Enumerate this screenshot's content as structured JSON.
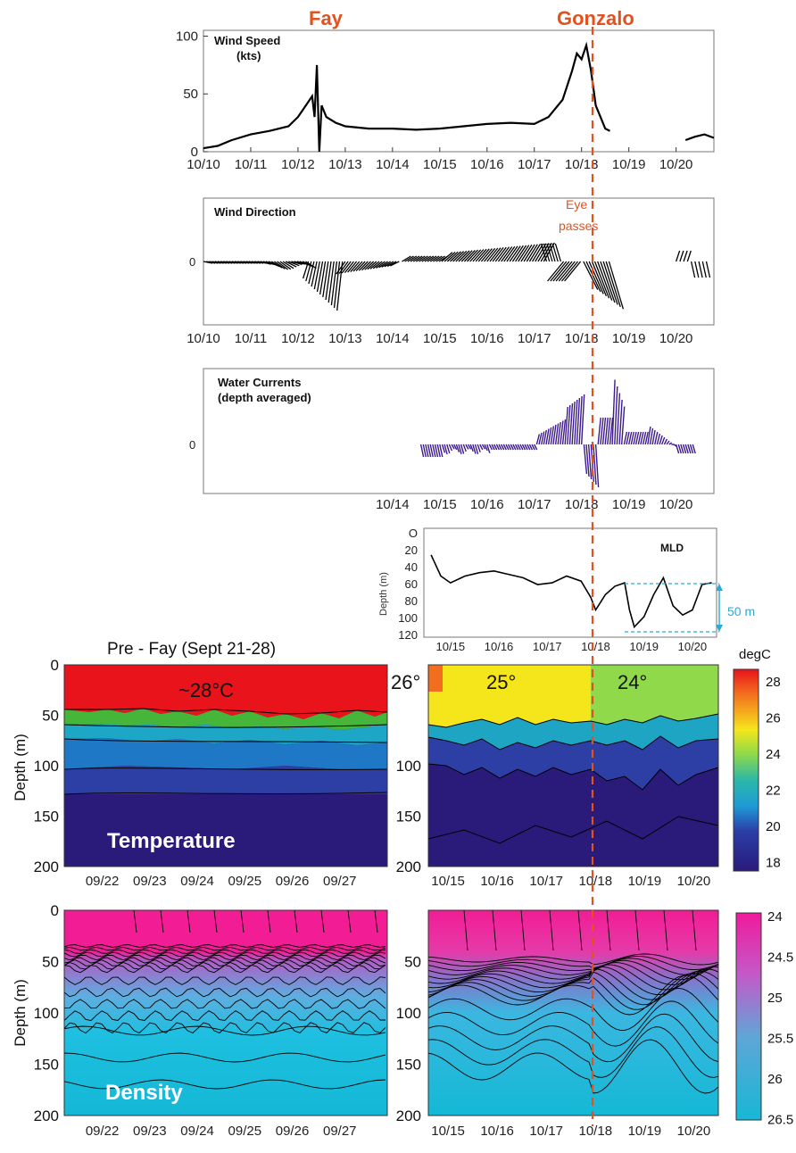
{
  "storm_labels": {
    "fay": "Fay",
    "gonzalo": "Gonzalo",
    "eye_line1": "Eye",
    "eye_line2": "passes"
  },
  "colors": {
    "storm": "#e2521f",
    "wind": "#000000",
    "currents": "#3d1a8c",
    "mld_bracket": "#2aa9d6"
  },
  "chart_data": [
    {
      "type": "line",
      "title": "Wind Speed",
      "subtitle": "(kts)",
      "x_ticks": [
        "10/10",
        "10/11",
        "10/12",
        "10/13",
        "10/14",
        "10/15",
        "10/16",
        "10/17",
        "10/18",
        "10/19",
        "10/20"
      ],
      "y_ticks": [
        "0",
        "50",
        "100"
      ],
      "ylim": [
        0,
        105
      ],
      "series": [
        {
          "x": [
            0,
            0.3,
            0.6,
            1.0,
            1.4,
            1.8,
            2.0,
            2.2,
            2.3,
            2.35,
            2.4,
            2.45,
            2.5,
            2.6,
            2.8,
            3.0,
            3.5,
            4.0,
            4.5,
            5.0,
            5.5,
            6.0,
            6.5,
            7.0,
            7.3,
            7.6,
            7.8,
            7.9,
            8.0,
            8.1,
            8.2,
            8.3,
            8.4,
            8.5,
            8.6,
            10.2,
            10.4,
            10.6,
            10.8
          ],
          "y": [
            3,
            5,
            10,
            15,
            18,
            22,
            30,
            42,
            48,
            30,
            75,
            0,
            40,
            30,
            25,
            22,
            20,
            20,
            19,
            20,
            22,
            24,
            25,
            24,
            30,
            45,
            70,
            85,
            80,
            92,
            70,
            40,
            30,
            20,
            18,
            10,
            13,
            15,
            12
          ]
        }
      ]
    },
    {
      "type": "quiver",
      "title": "Wind Direction",
      "x_ticks": [
        "10/10",
        "10/11",
        "10/12",
        "10/13",
        "10/14",
        "10/15",
        "10/16",
        "10/17",
        "10/18",
        "10/19",
        "10/20"
      ],
      "y_ticks": [
        "0"
      ]
    },
    {
      "type": "quiver",
      "title": "Water Currents",
      "subtitle": "(depth averaged)",
      "x_ticks": [
        "10/14",
        "10/15",
        "10/16",
        "10/17",
        "10/18",
        "10/19",
        "10/20"
      ],
      "y_ticks": [
        "0"
      ]
    },
    {
      "type": "line",
      "title": "MLD",
      "ylabel": "Depth (m)",
      "y_ticks": [
        "O",
        "20",
        "40",
        "60",
        "80",
        "100",
        "120"
      ],
      "ylim": [
        0,
        120
      ],
      "x_ticks": [
        "10/15",
        "10/16",
        "10/17",
        "10/18",
        "10/19",
        "10/20"
      ],
      "annotation": "50 m",
      "series": [
        {
          "x": [
            14.6,
            14.8,
            15.0,
            15.3,
            15.6,
            15.9,
            16.2,
            16.5,
            16.8,
            17.1,
            17.4,
            17.7,
            17.9,
            18.0,
            18.2,
            18.4,
            18.6,
            18.7,
            18.8,
            19.0,
            19.2,
            19.4,
            19.6,
            19.8,
            20.0,
            20.2,
            20.4
          ],
          "y": [
            25,
            50,
            58,
            50,
            46,
            44,
            48,
            52,
            60,
            58,
            50,
            56,
            75,
            90,
            72,
            62,
            58,
            90,
            110,
            98,
            72,
            52,
            85,
            96,
            90,
            60,
            58
          ]
        }
      ]
    },
    {
      "type": "heatmap",
      "title": "Pre - Fay (Sept 21-28)",
      "variable": "Temperature",
      "ylabel": "Depth (m)",
      "y_ticks": [
        "0",
        "50",
        "100",
        "150",
        "200"
      ],
      "x_ticks": [
        "09/22",
        "09/23",
        "09/24",
        "09/25",
        "09/26",
        "09/27"
      ],
      "annotation": "~28°C"
    },
    {
      "type": "heatmap",
      "variable": "Temperature",
      "x_ticks": [
        "10/15",
        "10/16",
        "10/17",
        "10/18",
        "10/19",
        "10/20"
      ],
      "y_ticks": [
        "",
        "100",
        "150",
        "200"
      ],
      "annotations": [
        "26°",
        "25°",
        "24°"
      ],
      "colorbar": {
        "label": "degC",
        "ticks": [
          "28",
          "26",
          "24",
          "22",
          "20",
          "18"
        ]
      }
    },
    {
      "type": "heatmap",
      "variable": "Density",
      "ylabel": "Depth (m)",
      "y_ticks": [
        "0",
        "50",
        "100",
        "150",
        "200"
      ],
      "x_ticks": [
        "09/22",
        "09/23",
        "09/24",
        "09/25",
        "09/26",
        "09/27"
      ]
    },
    {
      "type": "heatmap",
      "variable": "Density",
      "x_ticks": [
        "10/15",
        "10/16",
        "10/17",
        "10/18",
        "10/19",
        "10/20"
      ],
      "y_ticks": [
        "50",
        "100",
        "150",
        "200"
      ],
      "colorbar": {
        "ticks": [
          "24",
          "24.5",
          "25",
          "25.5",
          "26",
          "26.5"
        ]
      }
    }
  ]
}
